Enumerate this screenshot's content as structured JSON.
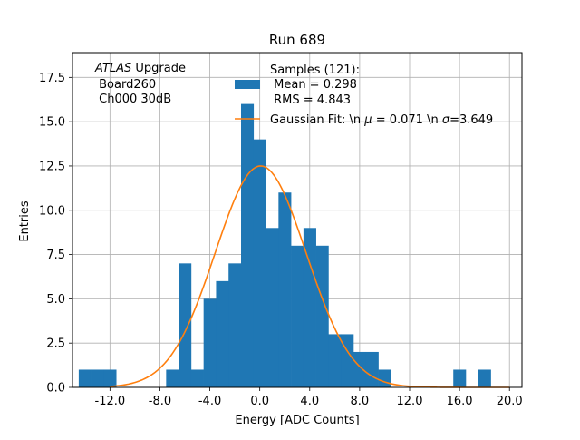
{
  "chart_data": {
    "type": "bar",
    "title": "Run 689",
    "xlabel": "Energy [ADC Counts]",
    "ylabel": "Entries",
    "xlim": [
      -15.0,
      21.0
    ],
    "ylim": [
      0,
      18.9
    ],
    "x_ticks": [
      -12.0,
      -8.0,
      -4.0,
      0.0,
      4.0,
      8.0,
      12.0,
      16.0,
      20.0
    ],
    "x_tick_labels": [
      "-12.0",
      "-8.0",
      "-4.0",
      "0.0",
      "4.0",
      "8.0",
      "12.0",
      "16.0",
      "20.0"
    ],
    "y_ticks": [
      0,
      2.5,
      5,
      7.5,
      10,
      12.5,
      15,
      17.5
    ],
    "y_tick_labels": [
      "0.0",
      "2.5",
      "5.0",
      "7.5",
      "10.0",
      "12.5",
      "15.0",
      "17.5"
    ],
    "grid": true,
    "bin_width": 1.0,
    "histogram": {
      "name": "Samples (121):\n Mean = 0.298\n RMS = 4.843",
      "color": "#1f77b4",
      "bins": [
        {
          "x0": -14.5,
          "count": 1
        },
        {
          "x0": -13.5,
          "count": 1
        },
        {
          "x0": -12.5,
          "count": 1
        },
        {
          "x0": -7.5,
          "count": 1
        },
        {
          "x0": -6.5,
          "count": 7
        },
        {
          "x0": -5.5,
          "count": 1
        },
        {
          "x0": -4.5,
          "count": 5
        },
        {
          "x0": -3.5,
          "count": 6
        },
        {
          "x0": -2.5,
          "count": 7
        },
        {
          "x0": -1.5,
          "count": 16
        },
        {
          "x0": -0.5,
          "count": 14
        },
        {
          "x0": 0.5,
          "count": 9
        },
        {
          "x0": 1.5,
          "count": 11
        },
        {
          "x0": 2.5,
          "count": 8
        },
        {
          "x0": 3.5,
          "count": 9
        },
        {
          "x0": 4.5,
          "count": 8
        },
        {
          "x0": 5.5,
          "count": 3
        },
        {
          "x0": 6.5,
          "count": 3
        },
        {
          "x0": 7.5,
          "count": 2
        },
        {
          "x0": 8.5,
          "count": 2
        },
        {
          "x0": 9.5,
          "count": 1
        },
        {
          "x0": 15.5,
          "count": 1
        },
        {
          "x0": 17.5,
          "count": 1
        }
      ]
    },
    "fit": {
      "name": "Gaussian Fit: \\n $\\mu$ = 0.071 \\n $\\sigma$=3.649",
      "color": "#ff7f0e",
      "amplitude": 12.5,
      "mu": 0.071,
      "sigma": 3.649
    },
    "legend": {
      "placement": "top-right",
      "samples_lines": [
        "Samples (121):",
        " Mean = 0.298",
        " RMS = 4.843"
      ],
      "fit_text_prefix": "Gaussian Fit: \\n ",
      "fit_mu_symbol": "μ",
      "fit_mu_text": " = 0.071 \\n ",
      "fit_sigma_symbol": "σ",
      "fit_sigma_text": "=3.649"
    },
    "annotation": {
      "italic": "ATLAS",
      "line1_rest": " Upgrade",
      "line2": " Board260",
      "line3": " Ch000 30dB"
    }
  }
}
